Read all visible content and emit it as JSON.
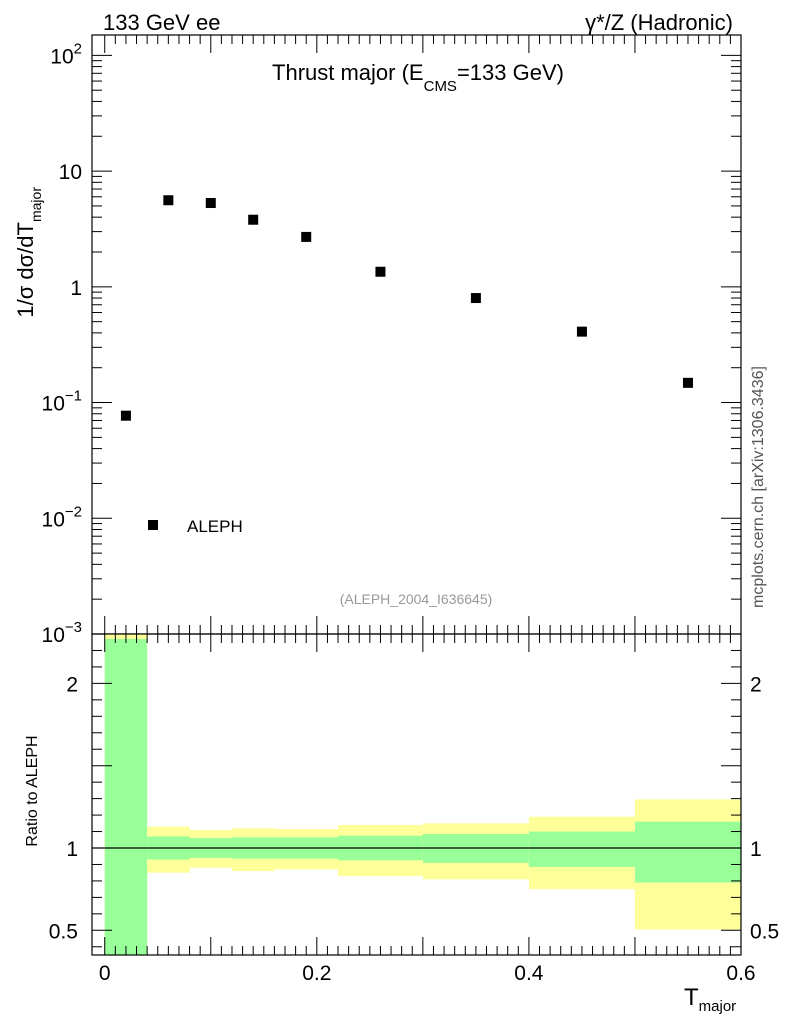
{
  "header": {
    "left": "133 GeV ee",
    "right": "γ*/Z (Hadronic)"
  },
  "side_label": "mcplots.cern.ch [arXiv:1306.3436]",
  "chart_data": [
    {
      "type": "scatter",
      "title_main": "Thrust major (E",
      "title_sub": "CMS",
      "title_tail": "=133 GeV)",
      "analysis_id": "(ALEPH_2004_I636645)",
      "ylabel_main": "1/σ  dσ/dT",
      "ylabel_sub": "major",
      "yscale": "log",
      "ylim": [
        0.001,
        150
      ],
      "xlim": [
        -0.012,
        0.6
      ],
      "ytick_base": "10",
      "yticks": [
        {
          "value": 0.001,
          "label": "",
          "exp": "−3"
        },
        {
          "value": 0.01,
          "label": "",
          "exp": "−2"
        },
        {
          "value": 0.1,
          "label": "",
          "exp": "−1"
        },
        {
          "value": 1,
          "label": "1",
          "exp": ""
        },
        {
          "value": 10,
          "label": "10",
          "exp": ""
        },
        {
          "value": 100,
          "label": "",
          "exp": "2"
        }
      ],
      "legend": {
        "label": "ALEPH",
        "placement": "bottom-left"
      },
      "series": [
        {
          "name": "ALEPH",
          "x": [
            0.02,
            0.06,
            0.1,
            0.14,
            0.19,
            0.26,
            0.35,
            0.45,
            0.55
          ],
          "y": [
            0.077,
            5.6,
            5.3,
            3.8,
            2.7,
            1.35,
            0.8,
            0.41,
            0.148
          ]
        }
      ]
    },
    {
      "type": "area",
      "ylabel": "Ratio to ALEPH",
      "xlabel_main": "T",
      "xlabel_sub": "major",
      "ylim": [
        0.35,
        2.3
      ],
      "xlim": [
        -0.012,
        0.6
      ],
      "xticks": [
        {
          "value": 0,
          "label": "0"
        },
        {
          "value": 0.2,
          "label": "0.2"
        },
        {
          "value": 0.4,
          "label": "0.4"
        },
        {
          "value": 0.6,
          "label": "0.6"
        }
      ],
      "yticks": [
        {
          "value": 0.5,
          "label": "0.5"
        },
        {
          "value": 1,
          "label": "1"
        },
        {
          "value": 2,
          "label": "2"
        }
      ],
      "reference_line": 1,
      "bands": [
        {
          "x0": 0.0,
          "x1": 0.04,
          "stat_lo": 0.35,
          "stat_hi": 2.27,
          "tot_lo": 0.35,
          "tot_hi": 2.3
        },
        {
          "x0": 0.04,
          "x1": 0.08,
          "stat_lo": 0.93,
          "stat_hi": 1.07,
          "tot_lo": 0.85,
          "tot_hi": 1.13
        },
        {
          "x0": 0.08,
          "x1": 0.12,
          "stat_lo": 0.94,
          "stat_hi": 1.06,
          "tot_lo": 0.88,
          "tot_hi": 1.11
        },
        {
          "x0": 0.12,
          "x1": 0.16,
          "stat_lo": 0.935,
          "stat_hi": 1.065,
          "tot_lo": 0.86,
          "tot_hi": 1.12
        },
        {
          "x0": 0.16,
          "x1": 0.22,
          "stat_lo": 0.935,
          "stat_hi": 1.065,
          "tot_lo": 0.87,
          "tot_hi": 1.115
        },
        {
          "x0": 0.22,
          "x1": 0.3,
          "stat_lo": 0.925,
          "stat_hi": 1.075,
          "tot_lo": 0.83,
          "tot_hi": 1.14
        },
        {
          "x0": 0.3,
          "x1": 0.4,
          "stat_lo": 0.91,
          "stat_hi": 1.085,
          "tot_lo": 0.81,
          "tot_hi": 1.15
        },
        {
          "x0": 0.4,
          "x1": 0.5,
          "stat_lo": 0.885,
          "stat_hi": 1.1,
          "tot_lo": 0.75,
          "tot_hi": 1.19
        },
        {
          "x0": 0.5,
          "x1": 0.6,
          "stat_lo": 0.79,
          "stat_hi": 1.16,
          "tot_lo": 0.505,
          "tot_hi": 1.295
        }
      ],
      "colors": {
        "stat": "#99ff99",
        "tot": "#ffff99",
        "line": "#000000"
      }
    }
  ]
}
